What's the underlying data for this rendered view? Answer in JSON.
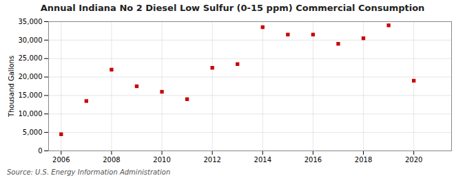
{
  "chart_data": {
    "type": "scatter",
    "title": "Annual Indiana No 2 Diesel Low Sulfur (0-15 ppm) Commercial Consumption",
    "ylabel": "Thousand Gallons",
    "source": "Source: U.S. Energy Information Administration",
    "x": [
      2006,
      2007,
      2008,
      2009,
      2010,
      2011,
      2012,
      2013,
      2014,
      2015,
      2016,
      2017,
      2018,
      2019,
      2020
    ],
    "values": [
      4500,
      13500,
      22000,
      17500,
      16000,
      14000,
      22500,
      23500,
      33500,
      31500,
      31500,
      29000,
      30500,
      34000,
      19000
    ],
    "color": "#cc0000",
    "marker": "square",
    "xlim": [
      2005.5,
      2021.5
    ],
    "xticks": [
      2006,
      2008,
      2010,
      2012,
      2014,
      2016,
      2018,
      2020
    ],
    "ylim": [
      0,
      35000
    ],
    "yticks": [
      0,
      {
        "value": 5000,
        "label": "5,000"
      },
      {
        "value": 10000,
        "label": "10,000"
      },
      {
        "value": 15000,
        "label": "15,000"
      },
      {
        "value": 20000,
        "label": "20,000"
      },
      {
        "value": 25000,
        "label": "25,000"
      },
      {
        "value": 30000,
        "label": "30,000"
      },
      {
        "value": 35000,
        "label": "35,000"
      }
    ],
    "grid": true
  }
}
